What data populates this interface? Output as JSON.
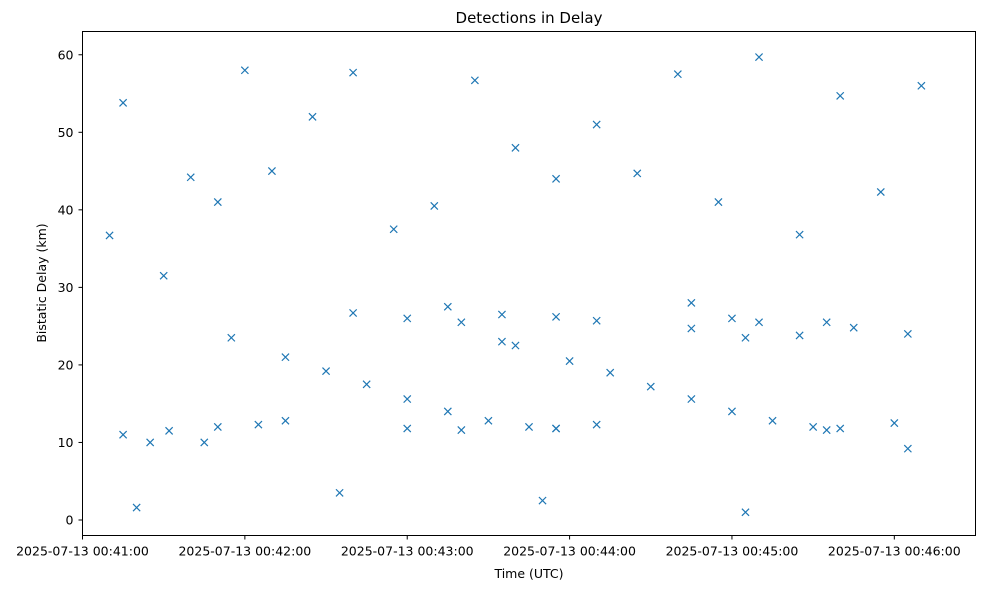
{
  "chart_data": {
    "type": "scatter",
    "title": "Detections in Delay",
    "xlabel": "Time (UTC)",
    "ylabel": "Bistatic Delay (km)",
    "x_tick_labels": [
      "2025-07-13 00:41:00",
      "2025-07-13 00:42:00",
      "2025-07-13 00:43:00",
      "2025-07-13 00:44:00",
      "2025-07-13 00:45:00",
      "2025-07-13 00:46:00"
    ],
    "x_range": [
      "2025-07-13 00:41:00",
      "2025-07-13 00:46:30"
    ],
    "y_ticks": [
      0,
      10,
      20,
      30,
      40,
      50,
      60
    ],
    "ylim": [
      -2,
      63
    ],
    "marker": "x",
    "color": "#1f77b4",
    "grid": false,
    "legend": "none",
    "series": [
      {
        "description": "descending track",
        "x": [
          "2025-07-13 00:41:55",
          "2025-07-13 00:42:15",
          "2025-07-13 00:42:30",
          "2025-07-13 00:42:45",
          "2025-07-13 00:43:00",
          "2025-07-13 00:43:15",
          "2025-07-13 00:43:30",
          "2025-07-13 00:43:45",
          "2025-07-13 00:43:55"
        ],
        "y": [
          23.5,
          21.0,
          19.2,
          17.5,
          15.6,
          14.0,
          12.8,
          12.0,
          11.8
        ]
      },
      {
        "description": "descending track",
        "x": [
          "2025-07-13 00:43:40",
          "2025-07-13 00:44:00",
          "2025-07-13 00:44:15",
          "2025-07-13 00:44:30",
          "2025-07-13 00:44:45",
          "2025-07-13 00:45:00",
          "2025-07-13 00:45:15",
          "2025-07-13 00:45:30",
          "2025-07-13 00:45:35"
        ],
        "y": [
          22.5,
          20.5,
          19.0,
          17.2,
          15.6,
          14.0,
          12.8,
          12.0,
          11.6
        ]
      },
      {
        "description": "short tracks",
        "x": [
          "2025-07-13 00:41:32",
          "2025-07-13 00:41:50",
          "2025-07-13 00:42:05",
          "2025-07-13 00:42:15",
          "2025-07-13 00:43:00",
          "2025-07-13 00:43:20",
          "2025-07-13 00:43:55",
          "2025-07-13 00:44:10",
          "2025-07-13 00:45:40",
          "2025-07-13 00:46:00",
          "2025-07-13 00:42:40",
          "2025-07-13 00:43:00",
          "2025-07-13 00:43:20",
          "2025-07-13 00:43:35",
          "2025-07-13 00:43:55",
          "2025-07-13 00:44:10",
          "2025-07-13 00:44:45",
          "2025-07-13 00:45:00",
          "2025-07-13 00:45:10",
          "2025-07-13 00:45:25",
          "2025-07-13 00:45:35",
          "2025-07-13 00:45:45",
          "2025-07-13 00:46:05",
          "2025-07-13 00:43:15",
          "2025-07-13 00:43:35",
          "2025-07-13 00:44:45",
          "2025-07-13 00:45:05",
          "2025-07-13 00:41:15",
          "2025-07-13 00:41:25",
          "2025-07-13 00:41:45"
        ],
        "y": [
          11.5,
          12.0,
          12.3,
          12.8,
          11.8,
          11.6,
          11.8,
          12.3,
          11.8,
          12.5,
          26.7,
          26.0,
          25.5,
          26.5,
          26.2,
          25.7,
          24.7,
          26.0,
          25.5,
          23.8,
          25.5,
          24.8,
          24.0,
          27.5,
          23.0,
          28.0,
          23.5,
          11.0,
          10.0,
          10.0
        ]
      },
      {
        "description": "scattered detections",
        "x": [
          "2025-07-13 00:41:10",
          "2025-07-13 00:41:15",
          "2025-07-13 00:41:30",
          "2025-07-13 00:41:40",
          "2025-07-13 00:41:50",
          "2025-07-13 00:42:00",
          "2025-07-13 00:42:10",
          "2025-07-13 00:42:25",
          "2025-07-13 00:42:40",
          "2025-07-13 00:42:55",
          "2025-07-13 00:43:10",
          "2025-07-13 00:43:25",
          "2025-07-13 00:43:40",
          "2025-07-13 00:43:55",
          "2025-07-13 00:44:10",
          "2025-07-13 00:44:25",
          "2025-07-13 00:44:40",
          "2025-07-13 00:44:55",
          "2025-07-13 00:45:10",
          "2025-07-13 00:45:25",
          "2025-07-13 00:45:40",
          "2025-07-13 00:45:55",
          "2025-07-13 00:46:10",
          "2025-07-13 00:41:20",
          "2025-07-13 00:42:35",
          "2025-07-13 00:43:50",
          "2025-07-13 00:45:05",
          "2025-07-13 00:46:05"
        ],
        "y": [
          36.7,
          53.8,
          31.5,
          44.2,
          41.0,
          58.0,
          45.0,
          52.0,
          57.7,
          37.5,
          40.5,
          56.7,
          48.0,
          44.0,
          51.0,
          44.7,
          57.5,
          41.0,
          59.7,
          36.8,
          54.7,
          42.3,
          56.0,
          1.6,
          3.5,
          2.5,
          1.0,
          9.2
        ]
      }
    ]
  }
}
